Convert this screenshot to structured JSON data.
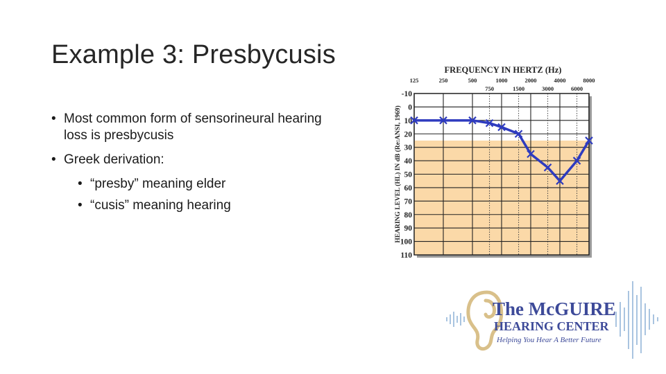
{
  "slide": {
    "title": "Example 3: Presbycusis",
    "bullets": [
      {
        "text": "Most common form of sensorineural hearing loss is presbycusis"
      },
      {
        "text": "Greek derivation:",
        "sub": [
          "“presby” meaning elder",
          "“cusis” meaning hearing"
        ]
      }
    ]
  },
  "chart_data": {
    "type": "line",
    "title": "FREQUENCY IN HERTZ (Hz)",
    "ylabel": "HEARING LEVEL (HL) IN dB (Re:ANSI, 1969)",
    "x_top_labels": [
      "125",
      "250",
      "500",
      "1000",
      "2000",
      "4000",
      "8000"
    ],
    "x_mid_labels": [
      "750",
      "1500",
      "3000",
      "6000"
    ],
    "y_tick_labels": [
      "-10",
      "0",
      "10",
      "20",
      "30",
      "40",
      "50",
      "60",
      "70",
      "80",
      "90",
      "100",
      "110"
    ],
    "ylim": [
      -10,
      110
    ],
    "y_inverted": true,
    "shaded_from_db": 25,
    "series": [
      {
        "x": [
          125,
          250,
          500,
          750,
          1000,
          1500,
          2000,
          3000,
          4000,
          6000,
          8000
        ],
        "y": [
          10,
          10,
          10,
          12,
          15,
          20,
          35,
          45,
          55,
          40,
          25
        ]
      }
    ],
    "colors": {
      "line": "#2e3bbf",
      "shade": "#fbd9a8",
      "grid": "#222222"
    }
  },
  "logo": {
    "line1": "The McGUIRE",
    "line2": "HEARING CENTER",
    "tagline": "Helping You Hear A Better Future",
    "colors": {
      "primary": "#3d4a99",
      "ear": "#d9c08a",
      "wave": "#a9c4e0"
    }
  }
}
